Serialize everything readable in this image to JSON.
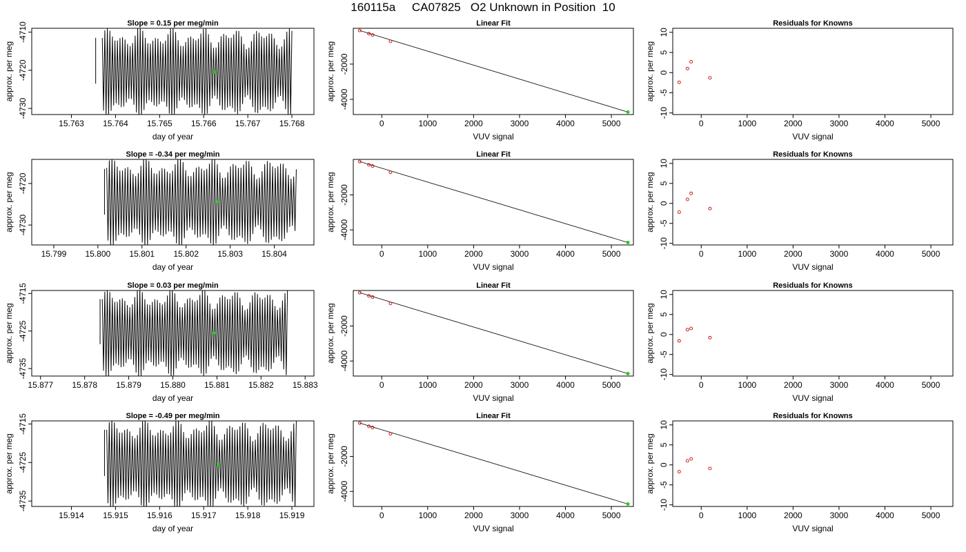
{
  "page_title": "160115a     CA07825   O2 Unknown in Position  10",
  "colors": {
    "axis": "#000000",
    "series": "#000000",
    "known_points": "#cc0000",
    "unknown_point": "#22cc22"
  },
  "chart_data": [
    {
      "type": "line",
      "row": 1,
      "col": 1,
      "title": "Slope =  0.15  per meg/min",
      "xlabel": "day of year",
      "ylabel": "approx. per meg",
      "xlim": [
        15.7621,
        15.7685
      ],
      "ylim": [
        -4731.6,
        -4709.0
      ],
      "xticks": [
        "15.763",
        "15.764",
        "15.765",
        "15.766",
        "15.767",
        "15.768"
      ],
      "yticks": [
        "-4710",
        "-4720",
        "-4730"
      ],
      "series": [
        {
          "x_start": 15.7637,
          "x_end": 15.768,
          "center": -4720.5,
          "amplitude": 12,
          "cycles": 75,
          "pre_x": 15.76355,
          "pre_y": -4711.5
        }
      ],
      "marker": {
        "x": 15.76625,
        "y": -4720.5
      }
    },
    {
      "type": "scatter",
      "row": 1,
      "col": 2,
      "title": "Linear Fit",
      "xlabel": "VUV signal",
      "ylabel": "approx. per meg",
      "xlim": [
        -620,
        5480
      ],
      "ylim": [
        -4860,
        30
      ],
      "xticks": [
        "0",
        "1000",
        "2000",
        "3000",
        "4000",
        "5000"
      ],
      "yticks": [
        "-2000",
        "-4000"
      ],
      "known_x": [
        -480,
        -280,
        -200,
        190
      ],
      "known_y": [
        -95,
        -278,
        -350,
        -710
      ],
      "fit_line": {
        "x": [
          -480,
          5360
        ],
        "y": [
          -95,
          -4720
        ]
      },
      "unknown": {
        "x": 5360,
        "y": -4720
      }
    },
    {
      "type": "scatter",
      "row": 1,
      "col": 3,
      "title": "Residuals for Knowns",
      "xlabel": "VUV signal",
      "ylabel": "approx. per meg",
      "xlim": [
        -620,
        5480
      ],
      "ylim": [
        -10.4,
        11.0
      ],
      "xticks": [
        "0",
        "1000",
        "2000",
        "3000",
        "4000",
        "5000"
      ],
      "yticks": [
        "10",
        "5",
        "0",
        "-5",
        "-10"
      ],
      "x": [
        -480,
        -300,
        -220,
        190
      ],
      "y": [
        -2.4,
        1.0,
        2.7,
        -1.3
      ]
    },
    {
      "type": "line",
      "row": 2,
      "col": 1,
      "title": "Slope =  -0.34  per meg/min",
      "xlabel": "day of year",
      "ylabel": "approx. per meg",
      "xlim": [
        15.7985,
        15.8049
      ],
      "ylim": [
        -4734.8,
        -4714.2
      ],
      "xticks": [
        "15.799",
        "15.800",
        "15.801",
        "15.802",
        "15.803",
        "15.804"
      ],
      "yticks": [
        "-4720",
        "-4730"
      ],
      "series": [
        {
          "x_start": 15.8002,
          "x_end": 15.8045,
          "center": -4724.5,
          "amplitude": 11,
          "cycles": 72,
          "pre_x": 15.80015,
          "pre_y": -4716.5
        }
      ],
      "marker": {
        "x": 15.80272,
        "y": -4724.4
      }
    },
    {
      "type": "scatter",
      "row": 2,
      "col": 2,
      "title": "Linear Fit",
      "xlabel": "VUV signal",
      "ylabel": "approx. per meg",
      "xlim": [
        -620,
        5480
      ],
      "ylim": [
        -4860,
        30
      ],
      "xticks": [
        "0",
        "1000",
        "2000",
        "3000",
        "4000",
        "5000"
      ],
      "yticks": [
        "-2000",
        "-4000"
      ],
      "known_x": [
        -480,
        -280,
        -200,
        190
      ],
      "known_y": [
        -95,
        -278,
        -350,
        -710
      ],
      "fit_line": {
        "x": [
          -480,
          5360
        ],
        "y": [
          -95,
          -4720
        ]
      },
      "unknown": {
        "x": 5360,
        "y": -4720
      }
    },
    {
      "type": "scatter",
      "row": 2,
      "col": 3,
      "title": "Residuals for Knowns",
      "xlabel": "VUV signal",
      "ylabel": "approx. per meg",
      "xlim": [
        -620,
        5480
      ],
      "ylim": [
        -10.4,
        11.0
      ],
      "xticks": [
        "0",
        "1000",
        "2000",
        "3000",
        "4000",
        "5000"
      ],
      "yticks": [
        "10",
        "5",
        "0",
        "-5",
        "-10"
      ],
      "x": [
        -480,
        -300,
        -220,
        190
      ],
      "y": [
        -2.2,
        1.0,
        2.5,
        -1.3
      ]
    },
    {
      "type": "line",
      "row": 3,
      "col": 1,
      "title": "Slope =  0.03  per meg/min",
      "xlabel": "day of year",
      "ylabel": "approx. per meg",
      "xlim": [
        15.8768,
        15.8832
      ],
      "ylim": [
        -4737.0,
        -4714.2
      ],
      "xticks": [
        "15.877",
        "15.878",
        "15.879",
        "15.880",
        "15.881",
        "15.882",
        "15.883"
      ],
      "yticks": [
        "-4715",
        "-4725",
        "-4735"
      ],
      "series": [
        {
          "x_start": 15.8784,
          "x_end": 15.8826,
          "center": -4725.5,
          "amplitude": 12,
          "cycles": 74,
          "pre_x": 15.87835,
          "pre_y": -4716.5
        }
      ],
      "marker": {
        "x": 15.88094,
        "y": -4725.5
      }
    },
    {
      "type": "scatter",
      "row": 3,
      "col": 2,
      "title": "Linear Fit",
      "xlabel": "VUV signal",
      "ylabel": "approx. per meg",
      "xlim": [
        -620,
        5480
      ],
      "ylim": [
        -4860,
        30
      ],
      "xticks": [
        "0",
        "1000",
        "2000",
        "3000",
        "4000",
        "5000"
      ],
      "yticks": [
        "-2000",
        "-4000"
      ],
      "known_x": [
        -480,
        -280,
        -200,
        190
      ],
      "known_y": [
        -95,
        -278,
        -350,
        -710
      ],
      "fit_line": {
        "x": [
          -480,
          5360
        ],
        "y": [
          -95,
          -4720
        ]
      },
      "unknown": {
        "x": 5360,
        "y": -4720
      }
    },
    {
      "type": "scatter",
      "row": 3,
      "col": 3,
      "title": "Residuals for Knowns",
      "xlabel": "VUV signal",
      "ylabel": "approx. per meg",
      "xlim": [
        -620,
        5480
      ],
      "ylim": [
        -10.4,
        11.0
      ],
      "xticks": [
        "0",
        "1000",
        "2000",
        "3000",
        "4000",
        "5000"
      ],
      "yticks": [
        "10",
        "5",
        "0",
        "-5",
        "-10"
      ],
      "x": [
        -480,
        -300,
        -220,
        190
      ],
      "y": [
        -1.6,
        1.2,
        1.5,
        -0.8
      ]
    },
    {
      "type": "line",
      "row": 4,
      "col": 1,
      "title": "Slope =  -0.49  per meg/min",
      "xlabel": "day of year",
      "ylabel": "approx. per meg",
      "xlim": [
        15.9131,
        15.9195
      ],
      "ylim": [
        -4736.4,
        -4714.2
      ],
      "xticks": [
        "15.914",
        "15.915",
        "15.916",
        "15.917",
        "15.918",
        "15.919"
      ],
      "yticks": [
        "-4715",
        "-4725",
        "-4735"
      ],
      "series": [
        {
          "x_start": 15.9148,
          "x_end": 15.9191,
          "center": -4725.5,
          "amplitude": 12,
          "cycles": 74,
          "pre_x": 15.91475,
          "pre_y": -4716.5
        }
      ],
      "marker": {
        "x": 15.91733,
        "y": -4725.5
      }
    },
    {
      "type": "scatter",
      "row": 4,
      "col": 2,
      "title": "Linear Fit",
      "xlabel": "VUV signal",
      "ylabel": "approx. per meg",
      "xlim": [
        -620,
        5480
      ],
      "ylim": [
        -4860,
        30
      ],
      "xticks": [
        "0",
        "1000",
        "2000",
        "3000",
        "4000",
        "5000"
      ],
      "yticks": [
        "-2000",
        "-4000"
      ],
      "known_x": [
        -480,
        -280,
        -200,
        190
      ],
      "known_y": [
        -95,
        -278,
        -350,
        -710
      ],
      "fit_line": {
        "x": [
          -480,
          5360
        ],
        "y": [
          -95,
          -4720
        ]
      },
      "unknown": {
        "x": 5360,
        "y": -4720
      }
    },
    {
      "type": "scatter",
      "row": 4,
      "col": 3,
      "title": "Residuals for Knowns",
      "xlabel": "VUV signal",
      "ylabel": "approx. per meg",
      "xlim": [
        -620,
        5480
      ],
      "ylim": [
        -10.4,
        11.0
      ],
      "xticks": [
        "0",
        "1000",
        "2000",
        "3000",
        "4000",
        "5000"
      ],
      "yticks": [
        "10",
        "5",
        "0",
        "-5",
        "-10"
      ],
      "x": [
        -480,
        -300,
        -220,
        190
      ],
      "y": [
        -1.7,
        1.0,
        1.5,
        -0.9
      ]
    }
  ]
}
